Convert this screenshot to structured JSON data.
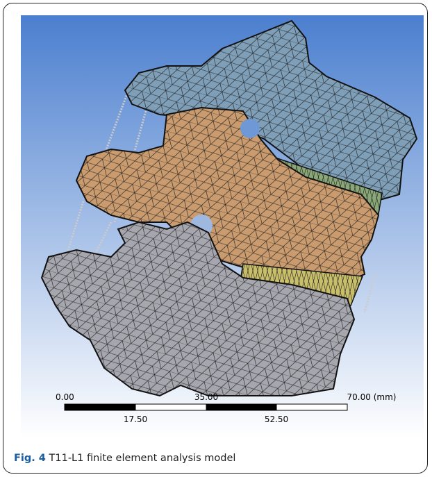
{
  "figure": {
    "scale_bar": {
      "top_labels": [
        "0.00",
        "35.00",
        "70.00 (mm)"
      ],
      "bottom_labels": [
        "17.50",
        "52.50"
      ]
    },
    "caption": {
      "label": "Fig. 4",
      "text": "T11-L1 finite element analysis model"
    }
  }
}
